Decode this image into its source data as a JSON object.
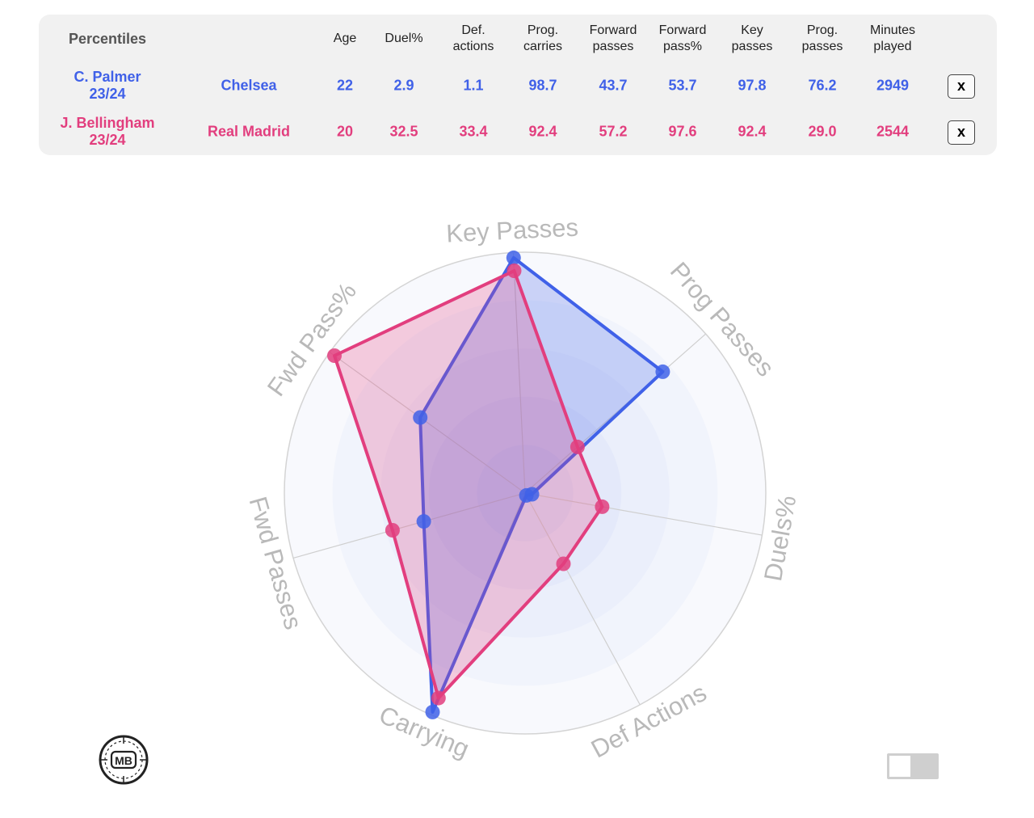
{
  "table": {
    "percentiles_label": "Percentiles",
    "headers": {
      "age": [
        "Age"
      ],
      "duel": [
        "Duel%"
      ],
      "def": [
        "Def.",
        "actions"
      ],
      "progc": [
        "Prog.",
        "carries"
      ],
      "fwdp": [
        "Forward",
        "passes"
      ],
      "fwdpp": [
        "Forward",
        "pass%"
      ],
      "keyp": [
        "Key",
        "passes"
      ],
      "progp": [
        "Prog.",
        "passes"
      ],
      "mins": [
        "Minutes",
        "played"
      ]
    },
    "close_label": "x",
    "players": [
      {
        "name": "C. Palmer",
        "season": "23/24",
        "team": "Chelsea",
        "color": "#4061e8",
        "age": "22",
        "duel": "2.9",
        "def": "1.1",
        "progc": "98.7",
        "fwdp": "43.7",
        "fwdpp": "53.7",
        "keyp": "97.8",
        "progp": "76.2",
        "mins": "2949"
      },
      {
        "name": "J. Bellingham",
        "season": "23/24",
        "team": "Real Madrid",
        "color": "#e23e7e",
        "age": "20",
        "duel": "32.5",
        "def": "33.4",
        "progc": "92.4",
        "fwdp": "57.2",
        "fwdpp": "97.6",
        "keyp": "92.4",
        "progp": "29.0",
        "mins": "2544"
      }
    ]
  },
  "chart_data": {
    "type": "radar",
    "axes": [
      "Key Passes",
      "Prog Passes",
      "Duels%",
      "Def Actions",
      "Carrying",
      "Fwd Passes",
      "Fwd Pass%"
    ],
    "range": [
      0,
      100
    ],
    "series": [
      {
        "name": "C. Palmer",
        "color": "#4061e8",
        "values": [
          97.8,
          76.2,
          2.9,
          1.1,
          98.7,
          43.7,
          53.7
        ]
      },
      {
        "name": "J. Bellingham",
        "color": "#e23e7e",
        "values": [
          92.4,
          29.0,
          32.5,
          33.4,
          92.4,
          57.2,
          97.6
        ]
      }
    ]
  },
  "logo_text": "MB"
}
